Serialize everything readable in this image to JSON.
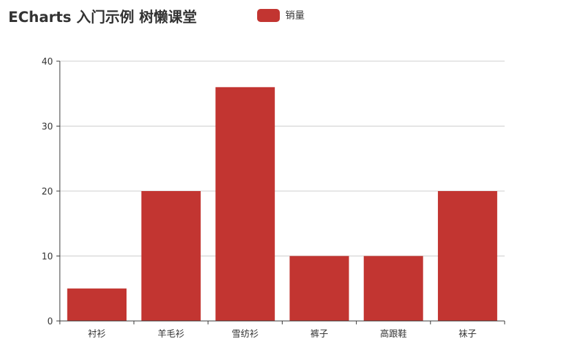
{
  "title": "ECharts 入门示例 树懒课堂",
  "chart_data": {
    "type": "bar",
    "categories": [
      "衬衫",
      "羊毛衫",
      "雪纺衫",
      "裤子",
      "高跟鞋",
      "袜子"
    ],
    "series": [
      {
        "name": "销量",
        "values": [
          5,
          20,
          36,
          10,
          10,
          20
        ]
      }
    ],
    "y_ticks": [
      0,
      10,
      20,
      30,
      40
    ],
    "ylim": [
      0,
      40
    ],
    "grid": true,
    "legend_position": "top",
    "colors": {
      "bar": "#c23531",
      "axis": "#333333",
      "grid": "#cccccc"
    }
  }
}
